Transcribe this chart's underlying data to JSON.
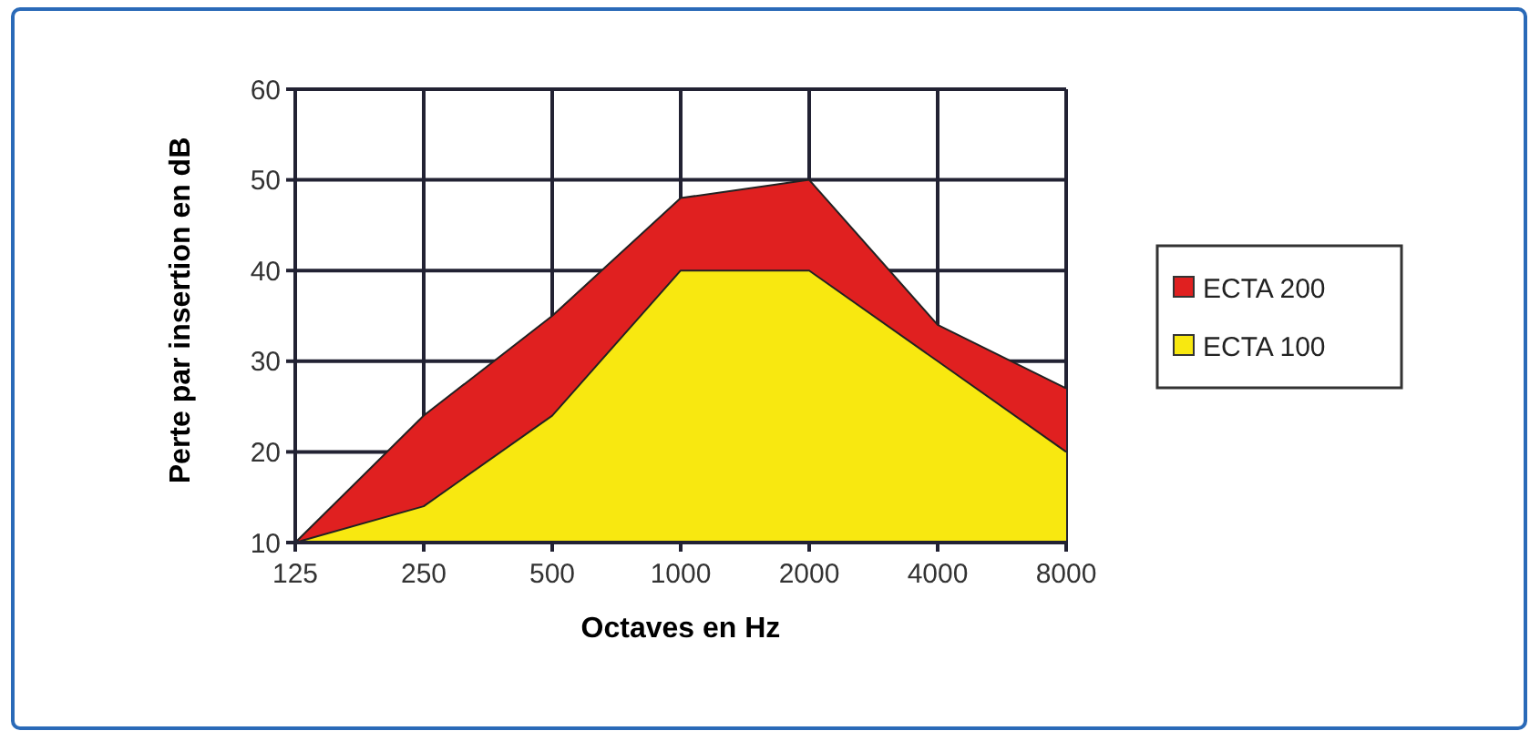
{
  "chart_data": {
    "type": "area",
    "xlabel": "Octaves en Hz",
    "ylabel": "Perte par insertion en dB",
    "categories": [
      "125",
      "250",
      "500",
      "1000",
      "2000",
      "4000",
      "8000"
    ],
    "series": [
      {
        "name": "ECTA 200",
        "color": "#e02020",
        "values": [
          10,
          24,
          35,
          48,
          50,
          34,
          27
        ]
      },
      {
        "name": "ECTA 100",
        "color": "#f8e810",
        "values": [
          10,
          14,
          24,
          40,
          40,
          30,
          20
        ]
      }
    ],
    "ylim": [
      10,
      60
    ],
    "yticks": [
      10,
      20,
      30,
      40,
      50,
      60
    ],
    "grid": true,
    "legend": "right"
  }
}
